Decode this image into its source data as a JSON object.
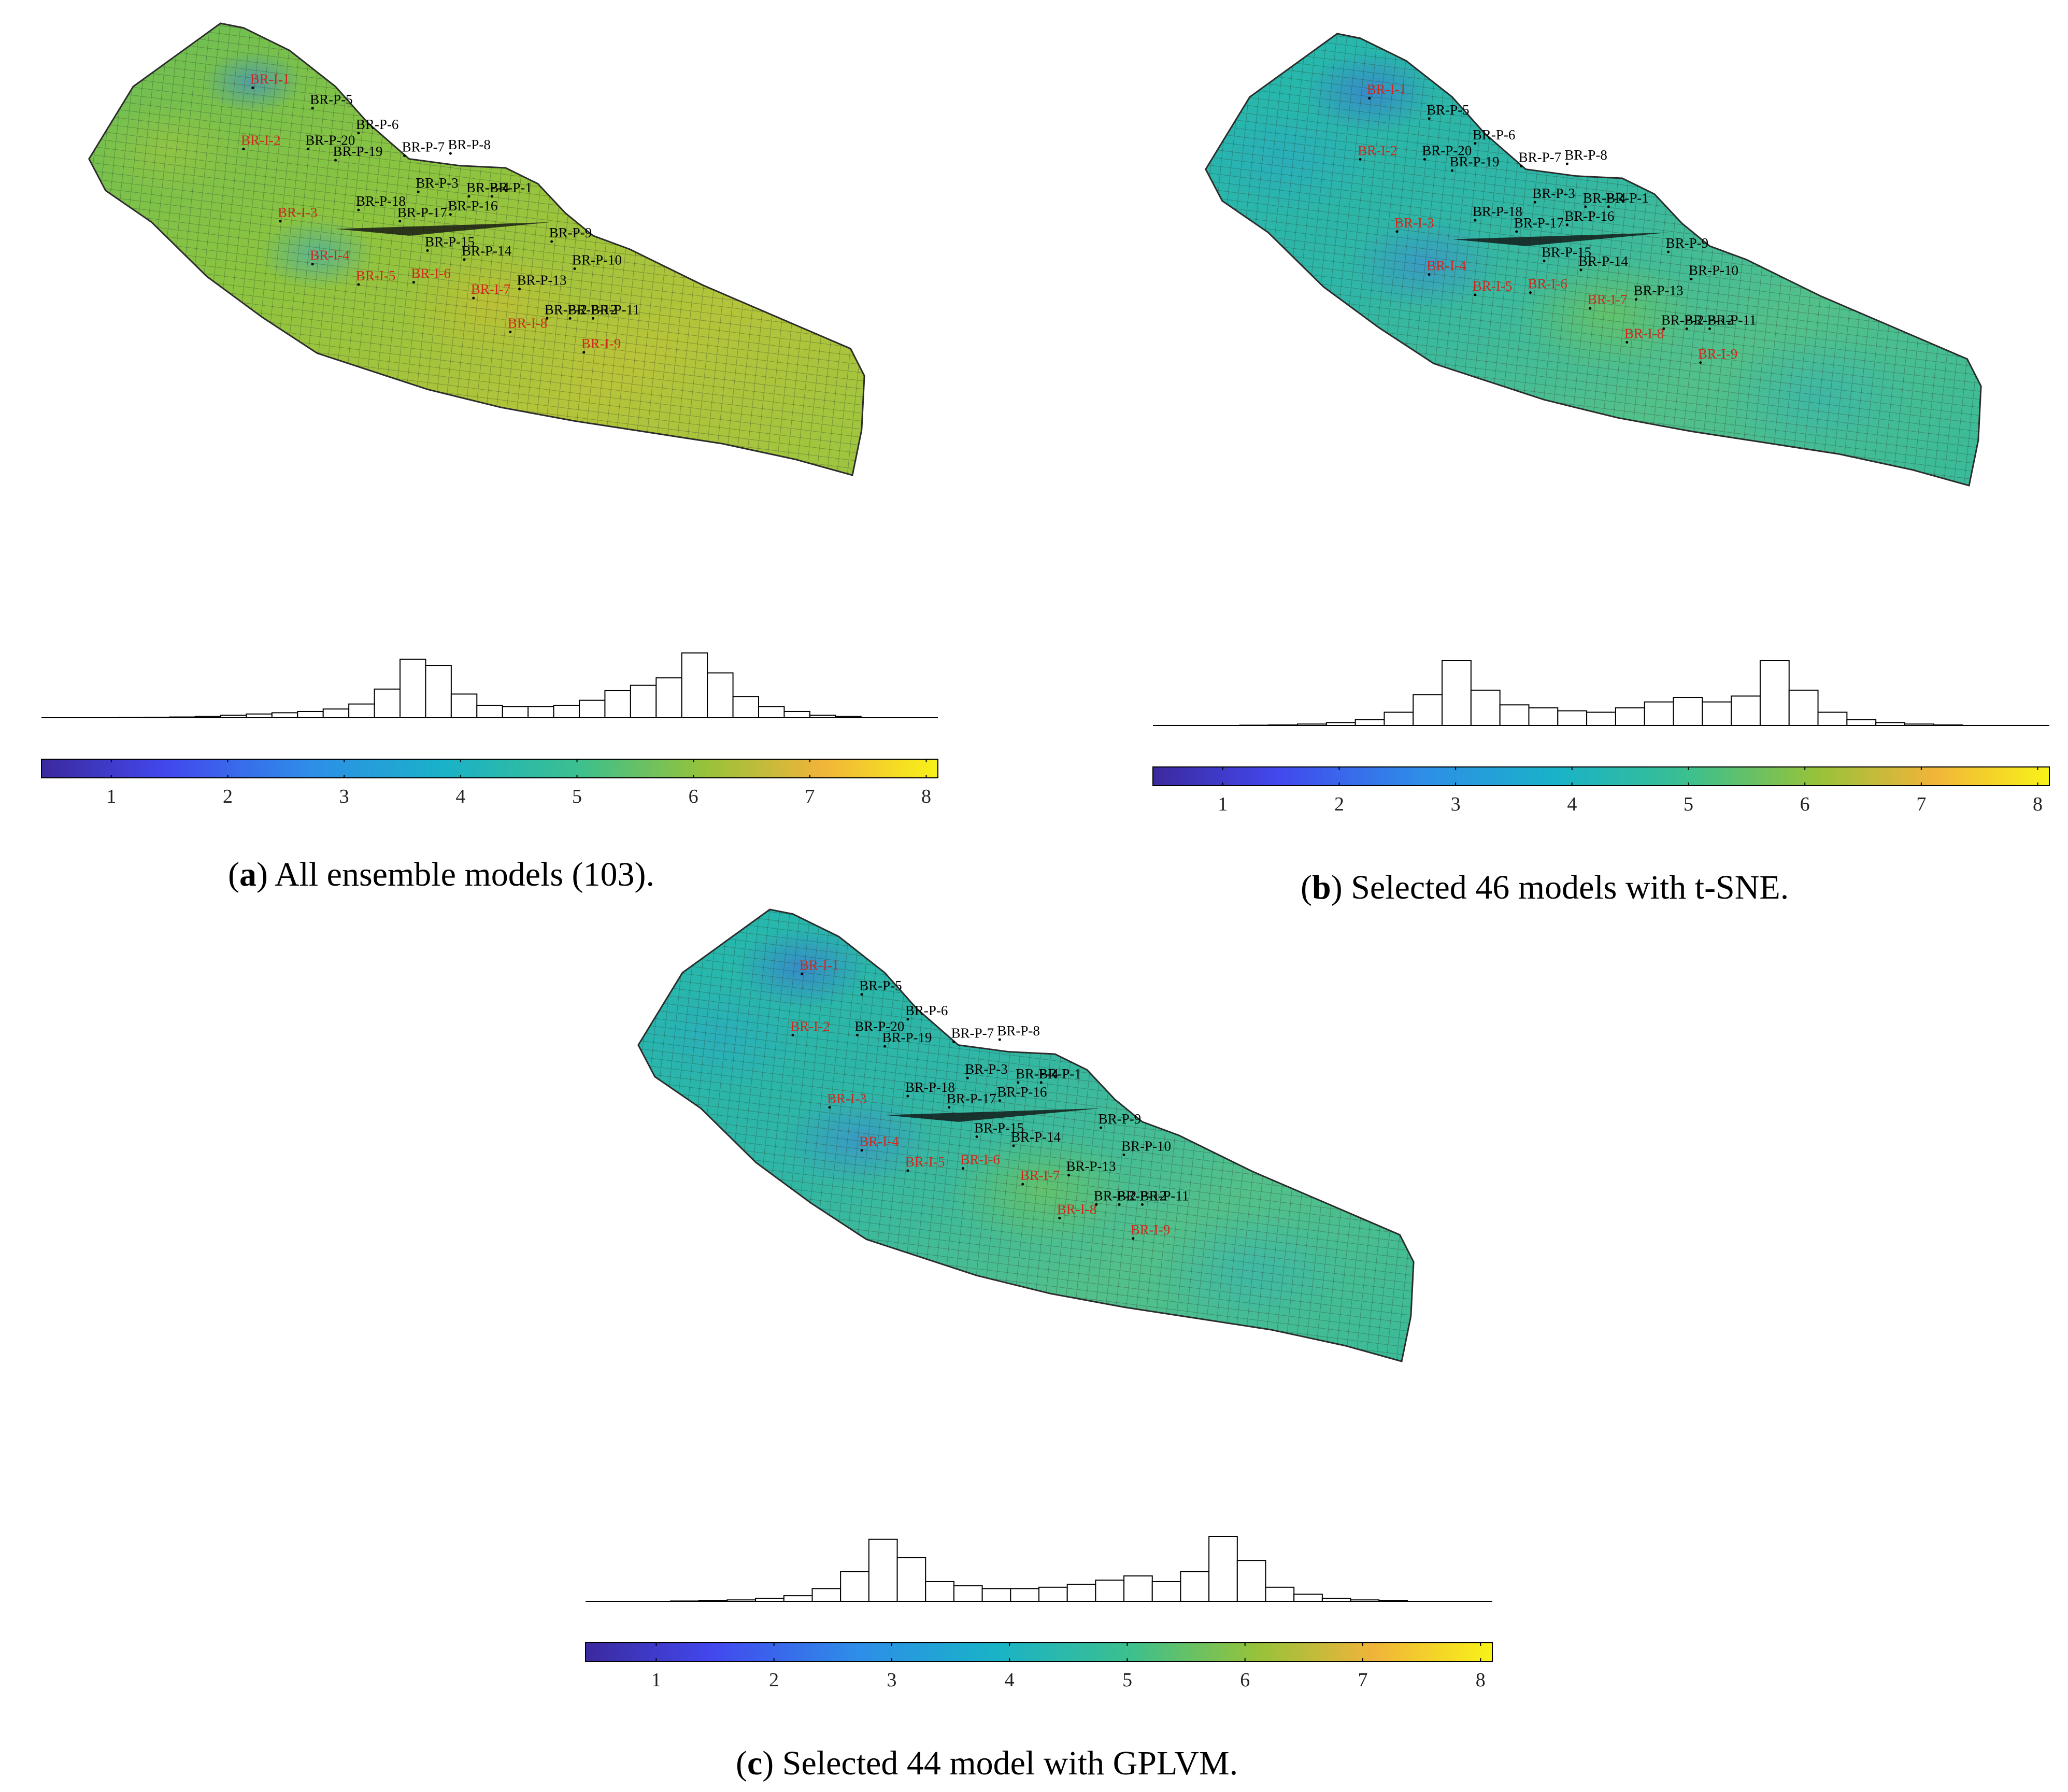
{
  "panels": [
    {
      "id": "a",
      "letter": "a",
      "caption": "All ensemble models (103).",
      "theme": "green",
      "colorbar_ticks": [
        "1",
        "2",
        "3",
        "4",
        "5",
        "6",
        "7",
        "8"
      ],
      "histogram": [
        0.2,
        0.4,
        0.6,
        1,
        2,
        3,
        4,
        5,
        7,
        11,
        23,
        47,
        42,
        19,
        10,
        9,
        9,
        10,
        14,
        22,
        26,
        32,
        52,
        36,
        17,
        9,
        5,
        2,
        1
      ]
    },
    {
      "id": "b",
      "letter": "b",
      "caption": "Selected 46 models with t-SNE.",
      "theme": "cyan",
      "colorbar_ticks": [
        "1",
        "2",
        "3",
        "4",
        "5",
        "6",
        "7",
        "8"
      ],
      "histogram": [
        0.2,
        0.4,
        1,
        2,
        4,
        9,
        21,
        44,
        24,
        14,
        12,
        10,
        9,
        12,
        16,
        19,
        16,
        20,
        44,
        24,
        9,
        4,
        2,
        1,
        0.4
      ]
    },
    {
      "id": "c",
      "letter": "c",
      "caption": "Selected 44 model with GPLVM.",
      "theme": "cyan",
      "colorbar_ticks": [
        "1",
        "2",
        "3",
        "4",
        "5",
        "6",
        "7",
        "8"
      ],
      "histogram": [
        0.2,
        0.4,
        1,
        2,
        4,
        9,
        21,
        44,
        31,
        14,
        11,
        9,
        9,
        10,
        12,
        15,
        18,
        14,
        21,
        46,
        29,
        10,
        5,
        2,
        1,
        0.4
      ]
    }
  ],
  "wells": [
    {
      "label": "BR-I-1",
      "type": "injector"
    },
    {
      "label": "BR-I-2",
      "type": "injector"
    },
    {
      "label": "BR-I-3",
      "type": "injector"
    },
    {
      "label": "BR-I-4",
      "type": "injector"
    },
    {
      "label": "BR-I-5",
      "type": "injector"
    },
    {
      "label": "BR-I-6",
      "type": "injector"
    },
    {
      "label": "BR-I-7",
      "type": "injector"
    },
    {
      "label": "BR-I-8",
      "type": "injector"
    },
    {
      "label": "BR-I-9",
      "type": "injector"
    },
    {
      "label": "BR-P-1",
      "type": "producer"
    },
    {
      "label": "BR-P-2",
      "type": "producer"
    },
    {
      "label": "BR-P-3",
      "type": "producer"
    },
    {
      "label": "BR-P-4",
      "type": "producer"
    },
    {
      "label": "BR-P-5",
      "type": "producer"
    },
    {
      "label": "BR-P-6",
      "type": "producer"
    },
    {
      "label": "BR-P-7",
      "type": "producer"
    },
    {
      "label": "BR-P-8",
      "type": "producer"
    },
    {
      "label": "BR-P-9",
      "type": "producer"
    },
    {
      "label": "BR-P-10",
      "type": "producer"
    },
    {
      "label": "BR-P-11",
      "type": "producer"
    },
    {
      "label": "BR-P-12",
      "type": "producer"
    },
    {
      "label": "BR-P-13",
      "type": "producer"
    },
    {
      "label": "BR-P-14",
      "type": "producer"
    },
    {
      "label": "BR-P-15",
      "type": "producer"
    },
    {
      "label": "BR-P-16",
      "type": "producer"
    },
    {
      "label": "BR-P-17",
      "type": "producer"
    },
    {
      "label": "BR-P-18",
      "type": "producer"
    },
    {
      "label": "BR-P-19",
      "type": "producer"
    },
    {
      "label": "BR-P-20",
      "type": "producer"
    }
  ],
  "colors": {
    "injector": "#d0281c",
    "producer": "#000000",
    "grid": "#2b3a2b"
  }
}
